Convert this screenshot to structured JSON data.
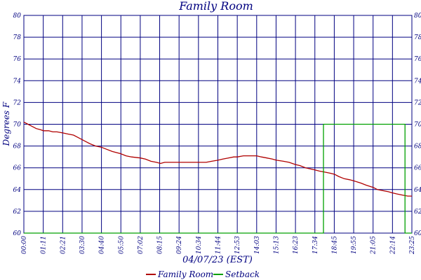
{
  "chart_data": {
    "type": "line",
    "title": "Family Room",
    "xlabel": "04/07/23 (EST)",
    "ylabel": "Degrees F",
    "ylim": [
      60,
      80
    ],
    "yticks": [
      60,
      62,
      64,
      66,
      68,
      70,
      72,
      74,
      76,
      78,
      80
    ],
    "xlim_minutes": [
      0,
      1405
    ],
    "xtick_labels": [
      "00:00",
      "01:11",
      "02:21",
      "03:30",
      "04:40",
      "05:50",
      "07:02",
      "08:15",
      "09:24",
      "10:34",
      "11:44",
      "12:53",
      "14:03",
      "15:13",
      "16:23",
      "17:34",
      "18:45",
      "19:55",
      "21:05",
      "22:14",
      "23:25"
    ],
    "x": [
      "00:00",
      "00:15",
      "00:30",
      "00:45",
      "01:00",
      "01:11",
      "01:30",
      "01:45",
      "02:00",
      "02:21",
      "02:40",
      "03:00",
      "03:15",
      "03:30",
      "03:45",
      "04:00",
      "04:20",
      "04:40",
      "05:00",
      "05:20",
      "05:50",
      "06:10",
      "06:30",
      "07:02",
      "07:20",
      "07:40",
      "08:00",
      "08:15",
      "08:30",
      "09:00",
      "09:24",
      "09:45",
      "10:00",
      "10:34",
      "11:00",
      "11:20",
      "11:44",
      "12:00",
      "12:20",
      "12:40",
      "12:53",
      "13:15",
      "13:40",
      "14:03",
      "14:20",
      "14:40",
      "15:00",
      "15:13",
      "15:40",
      "16:00",
      "16:23",
      "16:40",
      "17:00",
      "17:34",
      "17:50",
      "18:10",
      "18:30",
      "18:45",
      "19:00",
      "19:20",
      "19:40",
      "19:55",
      "20:20",
      "20:40",
      "21:05",
      "21:20",
      "21:40",
      "22:00",
      "22:14",
      "22:30",
      "22:50",
      "23:10",
      "23:25"
    ],
    "series": [
      {
        "name": "Family Room",
        "color": "#b00000",
        "values": [
          70.2,
          70.0,
          69.8,
          69.6,
          69.5,
          69.4,
          69.4,
          69.3,
          69.3,
          69.2,
          69.1,
          69.0,
          68.8,
          68.6,
          68.4,
          68.2,
          68.0,
          67.9,
          67.7,
          67.5,
          67.3,
          67.1,
          67.0,
          66.9,
          66.8,
          66.6,
          66.5,
          66.4,
          66.5,
          66.5,
          66.5,
          66.5,
          66.5,
          66.5,
          66.5,
          66.6,
          66.7,
          66.8,
          66.9,
          67.0,
          67.0,
          67.1,
          67.1,
          67.1,
          67.0,
          66.9,
          66.8,
          66.7,
          66.6,
          66.5,
          66.3,
          66.2,
          66.0,
          65.8,
          65.7,
          65.6,
          65.5,
          65.4,
          65.2,
          65.0,
          64.9,
          64.8,
          64.6,
          64.4,
          64.2,
          64.0,
          63.9,
          63.8,
          63.7,
          63.6,
          63.5,
          63.4,
          63.4
        ]
      },
      {
        "name": "Setback",
        "color": "#00a000",
        "points": [
          [
            "00:00",
            60
          ],
          [
            "18:05",
            60
          ],
          [
            "18:05",
            70
          ],
          [
            "23:00",
            70
          ],
          [
            "23:00",
            60
          ],
          [
            "23:25",
            60
          ]
        ]
      }
    ],
    "grid": true,
    "legend_position": "bottom-center"
  }
}
